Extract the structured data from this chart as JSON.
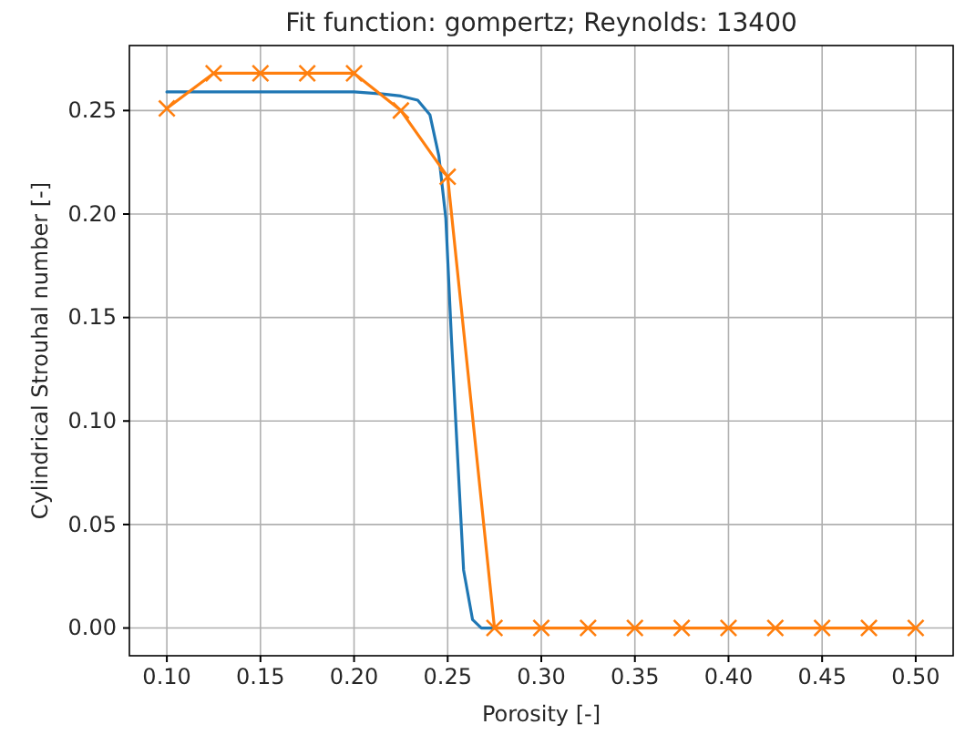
{
  "chart_data": {
    "type": "line",
    "title": "Fit function: gompertz; Reynolds: 13400",
    "xlabel": "Porosity [-]",
    "ylabel": "Cylindrical Strouhal number [-]",
    "xlim": [
      0.08,
      0.52
    ],
    "ylim": [
      -0.0134,
      0.2814
    ],
    "xticks": [
      {
        "value": 0.1,
        "label": "0.10"
      },
      {
        "value": 0.15,
        "label": "0.15"
      },
      {
        "value": 0.2,
        "label": "0.20"
      },
      {
        "value": 0.25,
        "label": "0.25"
      },
      {
        "value": 0.3,
        "label": "0.30"
      },
      {
        "value": 0.35,
        "label": "0.35"
      },
      {
        "value": 0.4,
        "label": "0.40"
      },
      {
        "value": 0.45,
        "label": "0.45"
      },
      {
        "value": 0.5,
        "label": "0.50"
      }
    ],
    "yticks": [
      {
        "value": 0,
        "label": "0.00"
      },
      {
        "value": 0.05,
        "label": "0.05"
      },
      {
        "value": 0.1,
        "label": "0.10"
      },
      {
        "value": 0.15,
        "label": "0.15"
      },
      {
        "value": 0.2,
        "label": "0.20"
      },
      {
        "value": 0.25,
        "label": "0.25"
      }
    ],
    "grid": true,
    "series": [
      {
        "color": "#1f77b4",
        "marker": "none",
        "x": [
          0.1,
          0.15,
          0.2,
          0.215,
          0.225,
          0.234,
          0.2405,
          0.2453,
          0.249,
          0.252,
          0.2554,
          0.2585,
          0.2633,
          0.268,
          0.275
        ],
        "values": [
          0.259,
          0.259,
          0.259,
          0.258,
          0.257,
          0.255,
          0.248,
          0.228,
          0.198,
          0.14,
          0.081,
          0.028,
          0.004,
          0,
          0
        ]
      },
      {
        "color": "#ff7f0e",
        "marker": "cross",
        "x": [
          0.1,
          0.125,
          0.15,
          0.175,
          0.2,
          0.225,
          0.25,
          0.275,
          0.3,
          0.325,
          0.35,
          0.375,
          0.4,
          0.425,
          0.45,
          0.475,
          0.5
        ],
        "values": [
          0.251,
          0.268,
          0.268,
          0.268,
          0.268,
          0.25,
          0.218,
          0,
          0,
          0,
          0,
          0,
          0,
          0,
          0,
          0,
          0
        ]
      }
    ]
  }
}
